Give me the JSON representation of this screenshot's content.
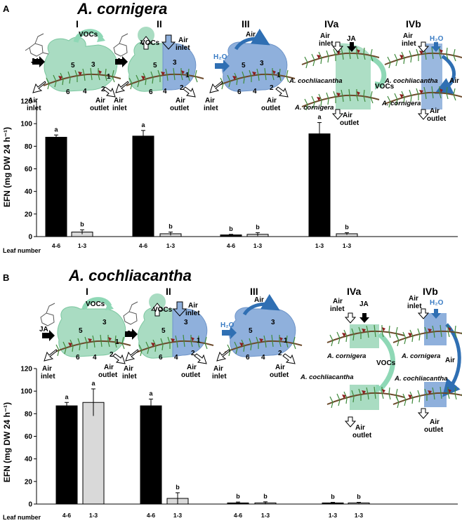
{
  "chart_data": [
    {
      "panel": "A",
      "title": "A. cornigera",
      "type": "bar",
      "ylabel": "EFN (mg DW 24 h⁻¹)",
      "ylim": [
        0,
        120
      ],
      "yticks": [
        0,
        20,
        40,
        60,
        80,
        100,
        120
      ],
      "leaf_number_label": "Leaf number",
      "treatments": [
        {
          "name": "I",
          "bars": [
            {
              "leaf": "4-6",
              "value": 88,
              "err": 2,
              "letter": "a",
              "color": "#000000"
            },
            {
              "leaf": "1-3",
              "value": 4,
              "err": 2,
              "letter": "b",
              "color": "#d9d9d9"
            }
          ]
        },
        {
          "name": "II",
          "bars": [
            {
              "leaf": "4-6",
              "value": 89,
              "err": 5,
              "letter": "a",
              "color": "#000000"
            },
            {
              "leaf": "1-3",
              "value": 2.5,
              "err": 1.5,
              "letter": "b",
              "color": "#d9d9d9"
            }
          ]
        },
        {
          "name": "III",
          "bars": [
            {
              "leaf": "4-6",
              "value": 1.5,
              "err": 0.5,
              "letter": "b",
              "color": "#000000"
            },
            {
              "leaf": "1-3",
              "value": 2,
              "err": 1.5,
              "letter": "b",
              "color": "#d9d9d9"
            }
          ]
        },
        {
          "name": "IVa",
          "bars": [
            {
              "leaf": "1-3",
              "value": 91,
              "err": 10,
              "letter": "a",
              "color": "#000000"
            },
            {
              "leaf": "1-3",
              "value": 2.5,
              "err": 1,
              "letter": "b",
              "color": "#d9d9d9"
            }
          ]
        },
        {
          "name": "IVb",
          "bars": []
        }
      ]
    },
    {
      "panel": "B",
      "title": "A. cochliacantha",
      "type": "bar",
      "ylabel": "EFN (mg DW 24 h⁻¹)",
      "ylim": [
        0,
        120
      ],
      "yticks": [
        0,
        20,
        40,
        60,
        80,
        100,
        120
      ],
      "leaf_number_label": "Leaf number",
      "treatments": [
        {
          "name": "I",
          "bars": [
            {
              "leaf": "4-6",
              "value": 87,
              "err": 3,
              "letter": "a",
              "color": "#000000"
            },
            {
              "leaf": "1-3",
              "value": 90,
              "err": 12,
              "letter": "a",
              "color": "#d9d9d9"
            }
          ]
        },
        {
          "name": "II",
          "bars": [
            {
              "leaf": "4-6",
              "value": 87,
              "err": 6,
              "letter": "a",
              "color": "#000000"
            },
            {
              "leaf": "1-3",
              "value": 5,
              "err": 5,
              "letter": "b",
              "color": "#d9d9d9"
            }
          ]
        },
        {
          "name": "III",
          "bars": [
            {
              "leaf": "4-6",
              "value": 1,
              "err": 0.8,
              "letter": "b",
              "color": "#000000"
            },
            {
              "leaf": "1-3",
              "value": 1,
              "err": 1,
              "letter": "b",
              "color": "#d9d9d9"
            }
          ]
        },
        {
          "name": "IVa",
          "bars": [
            {
              "leaf": "1-3",
              "value": 1,
              "err": 0.5,
              "letter": "b",
              "color": "#000000"
            },
            {
              "leaf": "1-3",
              "value": 1,
              "err": 0.5,
              "letter": "b",
              "color": "#d9d9d9"
            }
          ]
        },
        {
          "name": "IVb",
          "bars": []
        }
      ]
    }
  ],
  "diagram_labels": {
    "vocs": "VOCs",
    "ja": "JA",
    "air": "Air",
    "air_inlet_1": "Air",
    "air_inlet_2": "inlet",
    "air_outlet_1": "Air",
    "air_outlet_2": "outlet",
    "h2o": "H₂O",
    "species_cornigera": "A. cornigera",
    "species_cochliacantha": "A. cochliacantha",
    "leaf_numbers": [
      "1",
      "2",
      "3",
      "4",
      "5",
      "6"
    ]
  },
  "colors": {
    "green_enclosure": "#a9dcc2",
    "blue_enclosure": "#8fb0dc",
    "vocs_arrow": "#8fd8b6",
    "air_arrow_blue": "#2f6fb3",
    "h2o_text": "#3a7cc4",
    "bar_black": "#000000",
    "bar_grey": "#d9d9d9"
  }
}
